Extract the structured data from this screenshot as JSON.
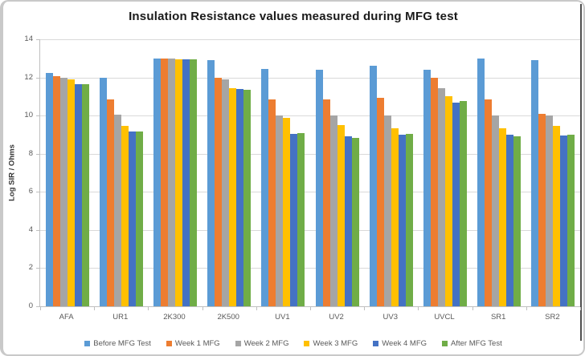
{
  "chart_data": {
    "type": "bar",
    "title": "Insulation Resistance values measured during MFG test",
    "xlabel": "",
    "ylabel": "Log SIR / Ohms",
    "ylim": [
      0,
      14
    ],
    "yticks": [
      0,
      2,
      4,
      6,
      8,
      10,
      12,
      14
    ],
    "grid": true,
    "legend_position": "bottom",
    "categories": [
      "AFA",
      "UR1",
      "2K300",
      "2K500",
      "UV1",
      "UV2",
      "UV3",
      "UVCL",
      "SR1",
      "SR2"
    ],
    "series": [
      {
        "name": "Before MFG Test",
        "color": "#5B9BD5",
        "values": [
          12.25,
          12.0,
          13.0,
          12.9,
          12.45,
          12.4,
          12.6,
          12.4,
          13.0,
          12.9
        ]
      },
      {
        "name": "Week 1 MFG",
        "color": "#ED7D31",
        "values": [
          12.05,
          10.85,
          13.0,
          12.0,
          10.85,
          10.85,
          10.95,
          12.0,
          10.85,
          10.1
        ]
      },
      {
        "name": "Week 2 MFG",
        "color": "#A5A5A5",
        "values": [
          12.0,
          10.05,
          13.0,
          11.9,
          10.0,
          10.0,
          10.0,
          11.45,
          10.0,
          10.0
        ]
      },
      {
        "name": "Week 3 MFG",
        "color": "#FFC000",
        "values": [
          11.9,
          9.45,
          12.95,
          11.45,
          9.9,
          9.5,
          9.35,
          11.0,
          9.35,
          9.45
        ]
      },
      {
        "name": "Week 4 MFG",
        "color": "#4472C4",
        "values": [
          11.65,
          9.15,
          12.95,
          11.4,
          9.05,
          8.9,
          9.0,
          10.7,
          9.0,
          8.95
        ]
      },
      {
        "name": "After MFG Test",
        "color": "#70AD47",
        "values": [
          11.65,
          9.15,
          12.95,
          11.35,
          9.1,
          8.85,
          9.05,
          10.75,
          8.9,
          9.0
        ]
      }
    ]
  }
}
